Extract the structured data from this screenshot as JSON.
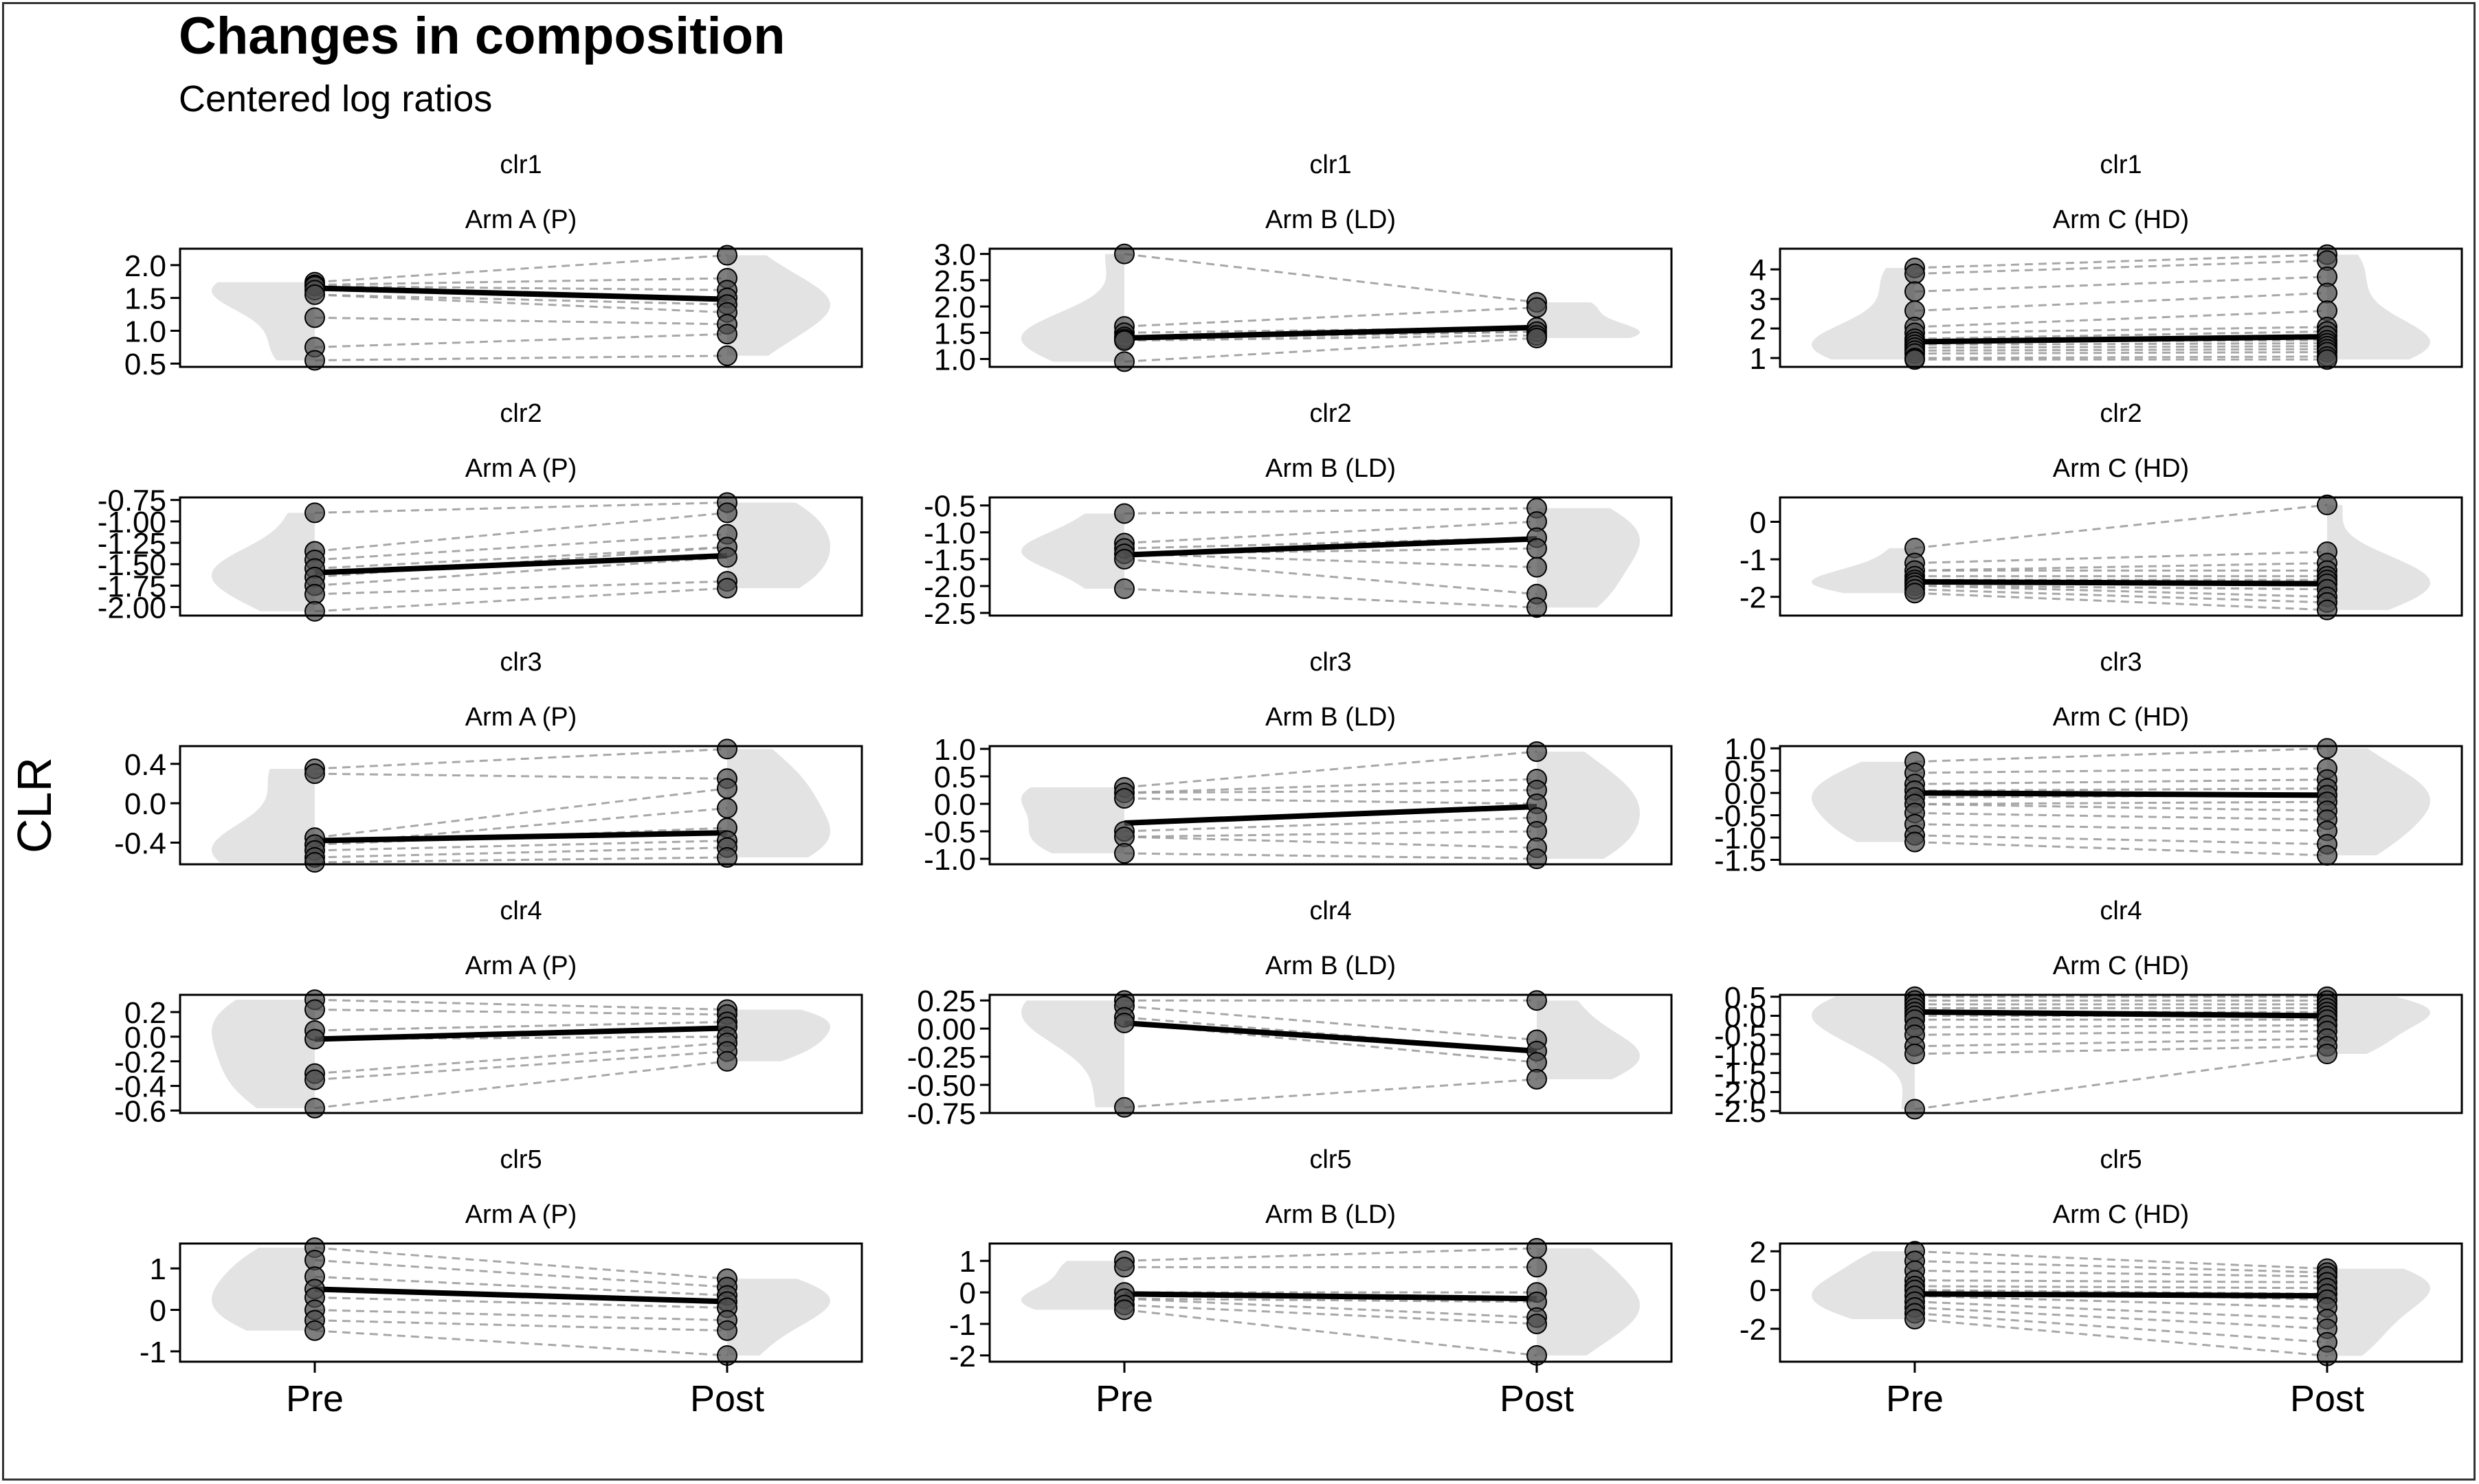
{
  "title": "Changes in composition",
  "subtitle": "Centered log ratios",
  "ylabel": "CLR",
  "x_categories": [
    "Pre",
    "Post"
  ],
  "colors": {
    "violin": "#e3e3e3",
    "mean_line": "#000000",
    "paired_line": "#999999",
    "point_fill": "#4d4d4d",
    "axis": "#000000"
  },
  "chart_data": [
    {
      "type": "scatter",
      "strip": "clr1",
      "group": "Arm A (P)",
      "categories": [
        "Pre",
        "Post"
      ],
      "ylim": [
        0.45,
        2.25
      ],
      "yticks": [
        "0.5",
        "1.0",
        "1.5",
        "2.0"
      ],
      "mean": [
        1.65,
        1.48
      ],
      "pre": [
        1.74,
        1.7,
        1.68,
        1.62,
        1.55,
        1.2,
        0.75,
        0.55
      ],
      "post": [
        2.15,
        1.8,
        1.62,
        1.5,
        1.4,
        1.28,
        1.1,
        0.95,
        0.62
      ]
    },
    {
      "type": "scatter",
      "strip": "clr1",
      "group": "Arm B (LD)",
      "categories": [
        "Pre",
        "Post"
      ],
      "ylim": [
        0.85,
        3.1
      ],
      "yticks": [
        "1.0",
        "1.5",
        "2.0",
        "2.5",
        "3.0"
      ],
      "mean": [
        1.4,
        1.6
      ],
      "pre": [
        3.0,
        1.62,
        1.5,
        1.42,
        1.38,
        1.35,
        0.95
      ],
      "post": [
        2.08,
        1.98,
        1.6,
        1.52,
        1.45,
        1.4
      ]
    },
    {
      "type": "scatter",
      "strip": "clr1",
      "group": "Arm C (HD)",
      "categories": [
        "Pre",
        "Post"
      ],
      "ylim": [
        0.7,
        4.7
      ],
      "yticks": [
        "1",
        "2",
        "3",
        "4"
      ],
      "mean": [
        1.55,
        1.72
      ],
      "pre": [
        4.05,
        3.85,
        3.25,
        2.6,
        2.05,
        1.85,
        1.65,
        1.55,
        1.45,
        1.35,
        1.25,
        1.15,
        1.0,
        0.95
      ],
      "post": [
        4.5,
        4.3,
        3.75,
        3.2,
        2.6,
        2.05,
        1.9,
        1.75,
        1.6,
        1.5,
        1.4,
        1.3,
        1.2,
        1.05,
        0.95
      ]
    },
    {
      "type": "scatter",
      "strip": "clr2",
      "group": "Arm A (P)",
      "categories": [
        "Pre",
        "Post"
      ],
      "ylim": [
        -2.1,
        -0.72
      ],
      "yticks": [
        "-2.00",
        "-1.75",
        "-1.50",
        "-1.25",
        "-1.00",
        "-0.75"
      ],
      "mean": [
        -1.6,
        -1.4
      ],
      "pre": [
        -0.9,
        -1.35,
        -1.45,
        -1.55,
        -1.65,
        -1.75,
        -1.85,
        -2.05
      ],
      "post": [
        -0.78,
        -0.9,
        -1.15,
        -1.3,
        -1.42,
        -1.7,
        -1.78
      ]
    },
    {
      "type": "scatter",
      "strip": "clr2",
      "group": "Arm B (LD)",
      "categories": [
        "Pre",
        "Post"
      ],
      "ylim": [
        -2.55,
        -0.35
      ],
      "yticks": [
        "-2.5",
        "-2.0",
        "-1.5",
        "-1.0",
        "-0.5"
      ],
      "mean": [
        -1.42,
        -1.12
      ],
      "pre": [
        -0.65,
        -1.2,
        -1.3,
        -1.4,
        -1.5,
        -2.05
      ],
      "post": [
        -0.55,
        -0.8,
        -1.1,
        -1.3,
        -1.65,
        -2.15,
        -2.4
      ]
    },
    {
      "type": "scatter",
      "strip": "clr2",
      "group": "Arm C (HD)",
      "categories": [
        "Pre",
        "Post"
      ],
      "ylim": [
        -2.5,
        0.65
      ],
      "yticks": [
        "-2",
        "-1",
        "0"
      ],
      "mean": [
        -1.6,
        -1.65
      ],
      "pre": [
        -0.7,
        -1.1,
        -1.3,
        -1.45,
        -1.55,
        -1.62,
        -1.7,
        -1.8,
        -1.9
      ],
      "post": [
        0.45,
        -0.8,
        -1.1,
        -1.3,
        -1.45,
        -1.55,
        -1.65,
        -1.8,
        -2.0,
        -2.15,
        -2.35
      ]
    },
    {
      "type": "scatter",
      "strip": "clr3",
      "group": "Arm A (P)",
      "categories": [
        "Pre",
        "Post"
      ],
      "ylim": [
        -0.62,
        0.58
      ],
      "yticks": [
        "-0.4",
        "0.0",
        "0.4"
      ],
      "mean": [
        -0.38,
        -0.3
      ],
      "pre": [
        0.35,
        0.3,
        -0.35,
        -0.42,
        -0.48,
        -0.55,
        -0.6
      ],
      "post": [
        0.55,
        0.25,
        0.15,
        -0.05,
        -0.25,
        -0.38,
        -0.45,
        -0.55
      ]
    },
    {
      "type": "scatter",
      "strip": "clr3",
      "group": "Arm B (LD)",
      "categories": [
        "Pre",
        "Post"
      ],
      "ylim": [
        -1.1,
        1.05
      ],
      "yticks": [
        "-1.0",
        "-0.5",
        "0.0",
        "0.5",
        "1.0"
      ],
      "mean": [
        -0.35,
        -0.05
      ],
      "pre": [
        0.3,
        0.2,
        0.1,
        -0.5,
        -0.6,
        -0.9
      ],
      "post": [
        0.95,
        0.45,
        0.25,
        0.0,
        -0.25,
        -0.5,
        -0.8,
        -1.0
      ]
    },
    {
      "type": "scatter",
      "strip": "clr3",
      "group": "Arm C (HD)",
      "categories": [
        "Pre",
        "Post"
      ],
      "ylim": [
        -1.6,
        1.05
      ],
      "yticks": [
        "-1.5",
        "-1.0",
        "-0.5",
        "0.0",
        "0.5",
        "1.0"
      ],
      "mean": [
        0.0,
        -0.05
      ],
      "pre": [
        0.7,
        0.45,
        0.2,
        0.05,
        -0.1,
        -0.25,
        -0.45,
        -0.7,
        -0.95,
        -1.1
      ],
      "post": [
        1.0,
        0.55,
        0.3,
        0.1,
        -0.05,
        -0.2,
        -0.4,
        -0.6,
        -0.85,
        -1.15,
        -1.4
      ]
    },
    {
      "type": "scatter",
      "strip": "clr4",
      "group": "Arm A (P)",
      "categories": [
        "Pre",
        "Post"
      ],
      "ylim": [
        -0.62,
        0.34
      ],
      "yticks": [
        "-0.6",
        "-0.4",
        "-0.2",
        "0.0",
        "0.2"
      ],
      "mean": [
        -0.02,
        0.07
      ],
      "pre": [
        0.3,
        0.22,
        0.05,
        -0.02,
        -0.3,
        -0.35,
        -0.58
      ],
      "post": [
        0.22,
        0.18,
        0.12,
        0.08,
        0.0,
        -0.05,
        -0.12,
        -0.2
      ]
    },
    {
      "type": "scatter",
      "strip": "clr4",
      "group": "Arm B (LD)",
      "categories": [
        "Pre",
        "Post"
      ],
      "ylim": [
        -0.75,
        0.3
      ],
      "yticks": [
        "-0.75",
        "-0.50",
        "-0.25",
        "0.00",
        "0.25"
      ],
      "mean": [
        0.05,
        -0.2
      ],
      "pre": [
        0.25,
        0.2,
        0.1,
        0.05,
        -0.7
      ],
      "post": [
        0.25,
        -0.1,
        -0.2,
        -0.3,
        -0.45
      ]
    },
    {
      "type": "scatter",
      "strip": "clr4",
      "group": "Arm C (HD)",
      "categories": [
        "Pre",
        "Post"
      ],
      "ylim": [
        -2.55,
        0.55
      ],
      "yticks": [
        "-2.5",
        "-2.0",
        "-1.5",
        "-1.0",
        "-0.5",
        "0.0",
        "0.5"
      ],
      "mean": [
        0.1,
        0.0
      ],
      "pre": [
        0.5,
        0.4,
        0.3,
        0.2,
        0.1,
        0.0,
        -0.1,
        -0.3,
        -0.5,
        -0.8,
        -1.0,
        -2.45
      ],
      "post": [
        0.5,
        0.4,
        0.3,
        0.2,
        0.1,
        0.0,
        -0.1,
        -0.25,
        -0.4,
        -0.6,
        -0.8,
        -1.0
      ]
    },
    {
      "type": "scatter",
      "strip": "clr5",
      "group": "Arm A (P)",
      "categories": [
        "Pre",
        "Post"
      ],
      "ylim": [
        -1.25,
        1.6
      ],
      "yticks": [
        "-1",
        "0",
        "1"
      ],
      "mean": [
        0.5,
        0.2
      ],
      "pre": [
        1.5,
        1.2,
        0.8,
        0.5,
        0.3,
        0.0,
        -0.25,
        -0.5
      ],
      "post": [
        0.75,
        0.55,
        0.35,
        0.2,
        0.05,
        -0.25,
        -0.5,
        -1.1
      ]
    },
    {
      "type": "scatter",
      "strip": "clr5",
      "group": "Arm B (LD)",
      "categories": [
        "Pre",
        "Post"
      ],
      "ylim": [
        -2.2,
        1.55
      ],
      "yticks": [
        "-2",
        "-1",
        "0",
        "1"
      ],
      "mean": [
        -0.05,
        -0.2
      ],
      "pre": [
        1.0,
        0.8,
        0.0,
        -0.2,
        -0.4,
        -0.55
      ],
      "post": [
        1.4,
        0.8,
        0.0,
        -0.3,
        -0.8,
        -1.0,
        -2.0
      ]
    },
    {
      "type": "scatter",
      "strip": "clr5",
      "group": "Arm C (HD)",
      "categories": [
        "Pre",
        "Post"
      ],
      "ylim": [
        -3.7,
        2.4
      ],
      "yticks": [
        "-2",
        "0",
        "2"
      ],
      "mean": [
        -0.2,
        -0.3
      ],
      "pre": [
        2.0,
        1.5,
        1.0,
        0.5,
        0.2,
        0.0,
        -0.3,
        -0.6,
        -0.9,
        -1.2,
        -1.5
      ],
      "post": [
        1.1,
        0.9,
        0.7,
        0.4,
        0.1,
        -0.2,
        -0.5,
        -0.9,
        -1.5,
        -2.0,
        -2.7,
        -3.4
      ]
    }
  ]
}
